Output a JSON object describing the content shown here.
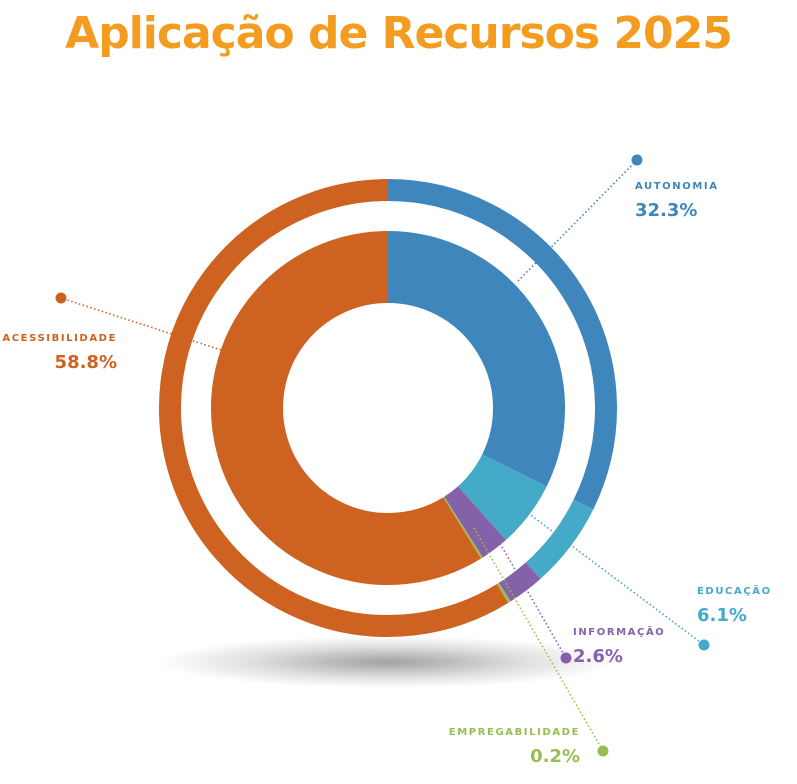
{
  "title": "Aplicação de Recursos 2025",
  "colors": {
    "title": "#f39c1f",
    "shadow": "#555555"
  },
  "chart_data": {
    "type": "pie",
    "style": "double-ring-donut",
    "title": "Aplicação de Recursos 2025",
    "unit": "%",
    "segments": [
      {
        "name": "AUTONOMIA",
        "value": 32.3,
        "value_label": "32.3%",
        "color": "#3e86bb"
      },
      {
        "name": "EDUCAÇÃO",
        "value": 6.1,
        "value_label": "6.1%",
        "color": "#44aac8"
      },
      {
        "name": "INFORMAÇÃO",
        "value": 2.6,
        "value_label": "2.6%",
        "color": "#8461a8"
      },
      {
        "name": "EMPREGABILIDADE",
        "value": 0.2,
        "value_label": "0.2%",
        "color": "#98be53"
      },
      {
        "name": "ACESSIBILIDADE",
        "value": 58.8,
        "value_label": "58.8%",
        "color": "#cd6221"
      }
    ]
  }
}
